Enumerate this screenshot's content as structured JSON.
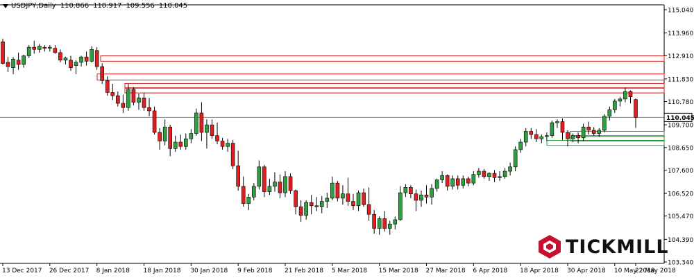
{
  "header": {
    "symbol": "USDJPY,Daily",
    "ohlc": [
      "110.866",
      "110.917",
      "109.556",
      "110.045"
    ]
  },
  "logo": {
    "text": "TICKMILL",
    "color": "#c8102e"
  },
  "colors": {
    "bull": "#2e9e3e",
    "bear": "#e02020",
    "wick": "#000000",
    "resistance": "#d81b1b",
    "support": "#1f9d2e",
    "current_line": "#7d8d87",
    "current_label_bg": "#ffffff",
    "axis_text": "#000000"
  },
  "chart_data": {
    "type": "candlestick",
    "symbol": "USDJPY",
    "timeframe": "Daily",
    "y_ticks": [
      "115.040",
      "113.960",
      "112.910",
      "111.830",
      "110.780",
      "109.700",
      "108.650",
      "107.600",
      "106.520",
      "105.470",
      "104.390",
      "103.340"
    ],
    "y_range": [
      103.34,
      115.04
    ],
    "x_labels": [
      "13 Dec 2017",
      "26 Dec 2017",
      "8 Jan 2018",
      "18 Jan 2018",
      "30 Jan 2018",
      "9 Feb 2018",
      "21 Feb 2018",
      "5 Mar 2018",
      "15 Mar 2018",
      "27 Mar 2018",
      "6 Apr 2018",
      "18 Apr 2018",
      "30 Apr 2018",
      "10 May 2018",
      "22 May 2018"
    ],
    "current_price": "110.045",
    "zones": [
      {
        "type": "resistance",
        "y1": 112.65,
        "y2": 112.9
      },
      {
        "type": "resistance",
        "y1": 111.78,
        "y2": 112.06
      },
      {
        "type": "resistance",
        "y1": 111.18,
        "y2": 111.42
      },
      {
        "type": "resistance",
        "y1": 111.4,
        "y2": 111.62
      },
      {
        "type": "support",
        "y1": 109.2,
        "y2": 109.4
      },
      {
        "type": "support",
        "y1": 108.95,
        "y2": 109.15
      },
      {
        "type": "support",
        "y1": 108.75,
        "y2": 108.98
      }
    ],
    "candles": [
      [
        113.55,
        113.7,
        112.5,
        112.55
      ],
      [
        112.6,
        112.85,
        112.15,
        112.4
      ],
      [
        112.35,
        112.85,
        112.05,
        112.75
      ],
      [
        112.7,
        113.05,
        112.25,
        112.5
      ],
      [
        112.5,
        112.95,
        112.35,
        112.9
      ],
      [
        112.9,
        113.4,
        112.8,
        113.3
      ],
      [
        113.3,
        113.6,
        113.0,
        113.2
      ],
      [
        113.2,
        113.45,
        113.05,
        113.35
      ],
      [
        113.3,
        113.4,
        113.1,
        113.25
      ],
      [
        113.25,
        113.4,
        113.1,
        113.3
      ],
      [
        113.25,
        113.4,
        113.0,
        113.05
      ],
      [
        113.05,
        113.2,
        112.6,
        112.7
      ],
      [
        112.7,
        112.85,
        112.5,
        112.8
      ],
      [
        112.7,
        112.9,
        112.2,
        112.35
      ],
      [
        112.45,
        112.7,
        112.05,
        112.6
      ],
      [
        112.6,
        112.9,
        112.4,
        112.85
      ],
      [
        112.85,
        113.1,
        112.45,
        112.65
      ],
      [
        112.65,
        113.35,
        112.6,
        113.2
      ],
      [
        113.15,
        113.3,
        112.25,
        112.4
      ],
      [
        112.4,
        112.55,
        111.6,
        111.75
      ],
      [
        111.75,
        111.95,
        111.05,
        111.2
      ],
      [
        111.2,
        111.6,
        110.85,
        111.05
      ],
      [
        111.05,
        111.25,
        110.55,
        110.7
      ],
      [
        110.7,
        111.1,
        110.25,
        110.5
      ],
      [
        110.5,
        111.6,
        110.35,
        111.35
      ],
      [
        111.35,
        111.45,
        110.6,
        110.75
      ],
      [
        110.75,
        111.15,
        110.4,
        110.95
      ],
      [
        110.95,
        111.2,
        110.35,
        110.5
      ],
      [
        110.5,
        110.95,
        110.1,
        110.35
      ],
      [
        110.35,
        110.55,
        109.25,
        109.35
      ],
      [
        109.35,
        109.55,
        108.55,
        108.95
      ],
      [
        108.95,
        109.95,
        108.75,
        109.6
      ],
      [
        109.6,
        109.7,
        108.25,
        108.6
      ],
      [
        108.6,
        109.2,
        108.45,
        108.9
      ],
      [
        108.9,
        109.25,
        108.55,
        108.7
      ],
      [
        108.7,
        109.3,
        108.55,
        109.05
      ],
      [
        109.05,
        109.5,
        108.85,
        109.3
      ],
      [
        109.3,
        110.45,
        109.2,
        110.25
      ],
      [
        110.25,
        110.75,
        108.95,
        109.35
      ],
      [
        109.35,
        109.95,
        108.6,
        109.7
      ],
      [
        109.7,
        109.95,
        109.05,
        109.2
      ],
      [
        109.2,
        109.8,
        108.8,
        108.95
      ],
      [
        108.95,
        109.1,
        108.55,
        108.7
      ],
      [
        108.7,
        109.05,
        108.45,
        108.85
      ],
      [
        108.85,
        109.0,
        107.65,
        107.8
      ],
      [
        107.8,
        108.5,
        106.65,
        106.85
      ],
      [
        106.85,
        107.3,
        105.9,
        106.05
      ],
      [
        106.05,
        106.5,
        105.75,
        106.35
      ],
      [
        106.35,
        107.0,
        106.2,
        106.85
      ],
      [
        106.85,
        108.05,
        106.7,
        107.75
      ],
      [
        107.75,
        107.85,
        106.35,
        106.6
      ],
      [
        106.6,
        107.2,
        106.45,
        106.85
      ],
      [
        106.85,
        107.5,
        106.6,
        107.05
      ],
      [
        107.05,
        107.4,
        106.3,
        106.55
      ],
      [
        106.55,
        107.55,
        106.35,
        107.3
      ],
      [
        107.3,
        107.45,
        106.5,
        106.65
      ],
      [
        106.65,
        106.7,
        105.55,
        105.9
      ],
      [
        105.9,
        106.2,
        105.2,
        105.5
      ],
      [
        105.5,
        106.2,
        105.3,
        106.1
      ],
      [
        106.1,
        106.45,
        105.55,
        105.95
      ],
      [
        105.95,
        106.35,
        105.7,
        105.9
      ],
      [
        105.9,
        106.4,
        105.6,
        106.15
      ],
      [
        106.15,
        106.55,
        105.85,
        106.3
      ],
      [
        106.3,
        107.3,
        106.2,
        107.0
      ],
      [
        107.0,
        107.1,
        106.15,
        106.3
      ],
      [
        106.3,
        106.9,
        106.0,
        106.5
      ],
      [
        106.5,
        107.25,
        105.95,
        106.15
      ],
      [
        106.15,
        106.5,
        105.75,
        105.95
      ],
      [
        105.95,
        106.65,
        105.7,
        106.55
      ],
      [
        106.55,
        106.75,
        105.9,
        106.0
      ],
      [
        106.0,
        106.8,
        105.25,
        105.55
      ],
      [
        105.55,
        105.75,
        104.65,
        104.9
      ],
      [
        104.9,
        105.45,
        104.6,
        105.35
      ],
      [
        105.35,
        105.7,
        104.75,
        104.9
      ],
      [
        104.9,
        105.25,
        104.6,
        105.1
      ],
      [
        105.1,
        105.45,
        104.85,
        105.3
      ],
      [
        105.3,
        106.85,
        105.25,
        106.55
      ],
      [
        106.55,
        106.95,
        106.35,
        106.8
      ],
      [
        106.8,
        106.9,
        106.3,
        106.5
      ],
      [
        106.5,
        106.7,
        105.7,
        106.2
      ],
      [
        106.2,
        106.65,
        105.9,
        106.45
      ],
      [
        106.45,
        106.9,
        106.05,
        106.35
      ],
      [
        106.35,
        106.95,
        106.0,
        106.75
      ],
      [
        106.75,
        107.2,
        106.6,
        107.15
      ],
      [
        107.15,
        107.55,
        107.0,
        107.35
      ],
      [
        107.35,
        107.4,
        106.65,
        106.85
      ],
      [
        106.85,
        107.35,
        106.7,
        107.2
      ],
      [
        107.2,
        107.35,
        106.7,
        106.9
      ],
      [
        106.9,
        107.35,
        106.75,
        107.2
      ],
      [
        107.2,
        107.3,
        106.85,
        107.0
      ],
      [
        107.0,
        107.55,
        106.9,
        107.4
      ],
      [
        107.4,
        107.7,
        107.25,
        107.55
      ],
      [
        107.55,
        107.65,
        107.2,
        107.3
      ],
      [
        107.3,
        107.5,
        107.1,
        107.45
      ],
      [
        107.45,
        107.6,
        107.05,
        107.25
      ],
      [
        107.25,
        107.55,
        107.1,
        107.3
      ],
      [
        107.3,
        107.7,
        107.2,
        107.55
      ],
      [
        107.55,
        107.95,
        107.35,
        107.75
      ],
      [
        107.75,
        108.7,
        107.55,
        108.55
      ],
      [
        108.55,
        109.05,
        108.4,
        108.9
      ],
      [
        108.9,
        109.55,
        108.7,
        109.4
      ],
      [
        109.4,
        109.55,
        109.05,
        109.25
      ],
      [
        109.25,
        109.5,
        108.9,
        109.05
      ],
      [
        109.05,
        109.25,
        108.85,
        109.15
      ],
      [
        109.15,
        109.35,
        108.95,
        109.2
      ],
      [
        109.2,
        109.9,
        109.1,
        109.8
      ],
      [
        109.8,
        109.95,
        109.55,
        109.85
      ],
      [
        109.85,
        110.0,
        109.0,
        109.35
      ],
      [
        109.35,
        109.45,
        108.7,
        109.05
      ],
      [
        109.05,
        109.3,
        108.9,
        109.2
      ],
      [
        109.2,
        109.35,
        108.85,
        109.1
      ],
      [
        109.1,
        109.75,
        108.95,
        109.6
      ],
      [
        109.6,
        109.85,
        109.25,
        109.45
      ],
      [
        109.45,
        109.6,
        109.2,
        109.3
      ],
      [
        109.3,
        109.55,
        109.15,
        109.45
      ],
      [
        109.45,
        110.2,
        109.35,
        110.1
      ],
      [
        110.1,
        110.55,
        109.9,
        110.4
      ],
      [
        110.4,
        110.9,
        110.25,
        110.8
      ],
      [
        110.8,
        111.0,
        110.55,
        110.9
      ],
      [
        110.9,
        111.4,
        110.75,
        111.25
      ],
      [
        111.25,
        111.3,
        110.7,
        111.0
      ],
      [
        110.87,
        110.92,
        109.56,
        110.05
      ]
    ]
  }
}
